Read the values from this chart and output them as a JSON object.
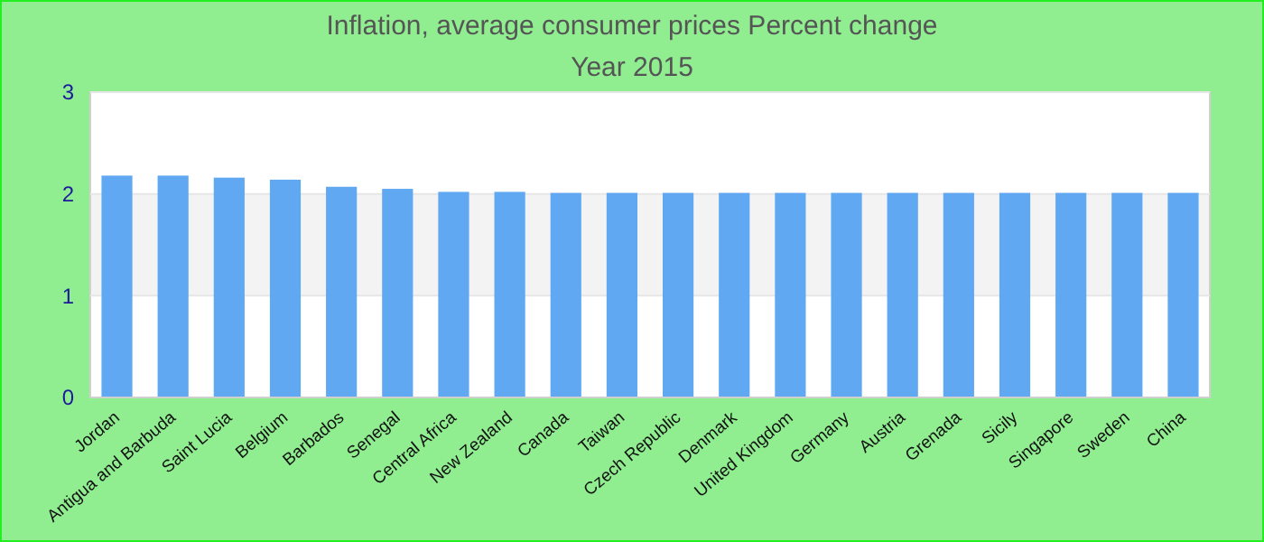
{
  "chart_data": {
    "type": "bar",
    "title": "Inflation, average consumer prices  Percent change",
    "subtitle": "Year 2015",
    "categories": [
      "Jordan",
      "Antigua and Barbuda",
      "Saint Lucia",
      "Belgium",
      "Barbados",
      "Senegal",
      "Central Africa",
      "New Zealand",
      "Canada",
      "Taiwan",
      "Czech Republic",
      "Denmark",
      "United Kingdom",
      "Germany",
      "Austria",
      "Grenada",
      "Sicily",
      "Singapore",
      "Sweden",
      "China"
    ],
    "values": [
      2.18,
      2.18,
      2.16,
      2.14,
      2.07,
      2.05,
      2.02,
      2.02,
      2.01,
      2.01,
      2.01,
      2.01,
      2.01,
      2.01,
      2.01,
      2.01,
      2.01,
      2.01,
      2.01,
      2.01
    ],
    "color": "#61a8f3",
    "ylim": [
      0,
      3
    ],
    "yticks": [
      0,
      1,
      2,
      3
    ],
    "grid": "y"
  }
}
